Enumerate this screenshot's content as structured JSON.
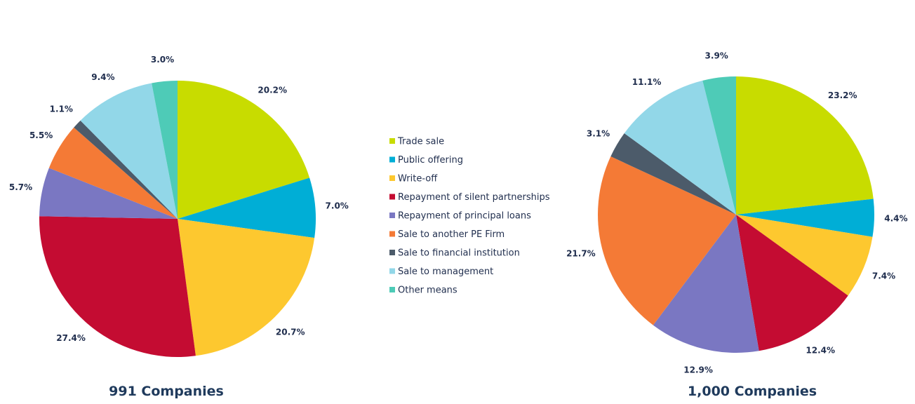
{
  "chart_data": [
    {
      "type": "pie",
      "caption": "991 Companies",
      "categories": [
        "Trade sale",
        "Public offering",
        "Write-off",
        "Repayment of silent partnerships",
        "Repayment of principal loans",
        "Sale to another PE Firm",
        "Sale to financial institution",
        "Sale to management",
        "Other means"
      ],
      "values": [
        20.2,
        7.0,
        20.7,
        27.4,
        5.7,
        5.5,
        1.1,
        9.4,
        3.0
      ],
      "labels": [
        "20.2%",
        "7.0%",
        "20.7%",
        "27.4%",
        "5.7%",
        "5.5%",
        "1.1%",
        "9.4%",
        "3.0%"
      ]
    },
    {
      "type": "pie",
      "caption": "1,000 Companies",
      "categories": [
        "Trade sale",
        "Public offering",
        "Write-off",
        "Repayment of silent partnerships",
        "Repayment of principal loans",
        "Sale to another PE Firm",
        "Sale to financial institution",
        "Sale to management",
        "Other means"
      ],
      "values": [
        23.2,
        4.4,
        7.4,
        12.4,
        12.9,
        21.7,
        3.1,
        11.1,
        3.9
      ],
      "labels": [
        "23.2%",
        "4.4%",
        "7.4%",
        "12.4%",
        "12.9%",
        "21.7%",
        "3.1%",
        "11.1%",
        "3.9%"
      ]
    }
  ],
  "legend": {
    "items": [
      "Trade sale",
      "Public offering",
      "Write-off",
      "Repayment of silent partnerships",
      "Repayment of principal loans",
      "Sale to another PE Firm",
      "Sale to financial institution",
      "Sale to management",
      "Other means"
    ],
    "colors": [
      "#c8dc00",
      "#00aed6",
      "#fdc82f",
      "#c40c32",
      "#7a77c2",
      "#f47a36",
      "#4c5b6a",
      "#92d7e8",
      "#4ecbb7"
    ],
    "placement": "center"
  }
}
